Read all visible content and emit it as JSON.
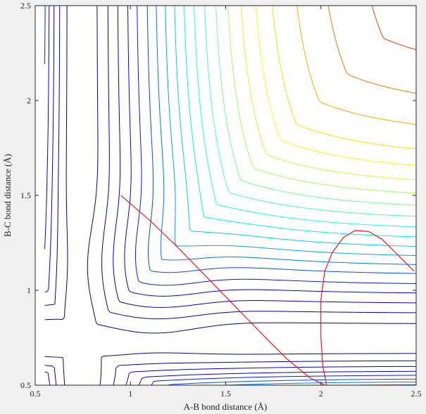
{
  "chart_data": {
    "type": "contour",
    "title": "",
    "xlabel": "A-B bond distance (Å)",
    "ylabel": "B-C bond distance (Å)",
    "xlim": [
      0.5,
      2.5
    ],
    "ylim": [
      0.5,
      2.5
    ],
    "x_ticks": [
      0.5,
      1,
      1.5,
      2,
      2.5
    ],
    "x_tick_labels": [
      "0.5",
      "1",
      "1.5",
      "2",
      "2.5"
    ],
    "y_ticks": [
      0.5,
      1,
      1.5,
      2,
      2.5
    ],
    "y_tick_labels": [
      "0.5",
      "1",
      "1.5",
      "2",
      "2.5"
    ],
    "grid": false,
    "legend": "none",
    "colormap": "jet",
    "surface": {
      "description_only": false,
      "De": 1.0,
      "r0": 0.74,
      "a": 1.9,
      "coupling": 0.35,
      "barrier_center": [
        1.12,
        1.12
      ],
      "barrier_height": 0.12,
      "barrier_width": 0.22
    },
    "contour_levels": [
      0.04,
      0.1,
      0.17,
      0.25,
      0.33,
      0.42,
      0.5,
      0.58,
      0.66,
      0.74,
      0.82,
      0.9,
      0.98,
      1.06,
      1.14,
      1.22,
      1.3,
      1.4,
      1.5,
      1.6,
      1.72,
      1.84,
      1.96
    ],
    "colors": {
      "axes_background": "#ffffff",
      "figure_background": "#f0f0f0",
      "axis_color": "#262626",
      "trajectory_color": "#ff0000",
      "jet_stops": [
        "#00008f",
        "#0000ff",
        "#0080ff",
        "#00ffff",
        "#80ff80",
        "#ffff00",
        "#ff8000",
        "#ff0000",
        "#800000"
      ]
    },
    "trajectory": {
      "name": "",
      "x": [
        0.95,
        1.1,
        1.25,
        1.4,
        1.55,
        1.7,
        1.82,
        1.94,
        2.02
      ],
      "y": [
        1.5,
        1.37,
        1.225,
        1.07,
        0.915,
        0.76,
        0.64,
        0.54,
        0.5
      ]
    },
    "return_curve": {
      "name": "",
      "x": [
        2.03,
        2.01,
        2.0,
        2.0,
        2.02,
        2.06,
        2.12,
        2.18,
        2.25,
        2.32,
        2.39,
        2.45,
        2.49
      ],
      "y": [
        0.5,
        0.6,
        0.75,
        0.95,
        1.1,
        1.2,
        1.28,
        1.315,
        1.31,
        1.27,
        1.2,
        1.14,
        1.1
      ]
    }
  }
}
